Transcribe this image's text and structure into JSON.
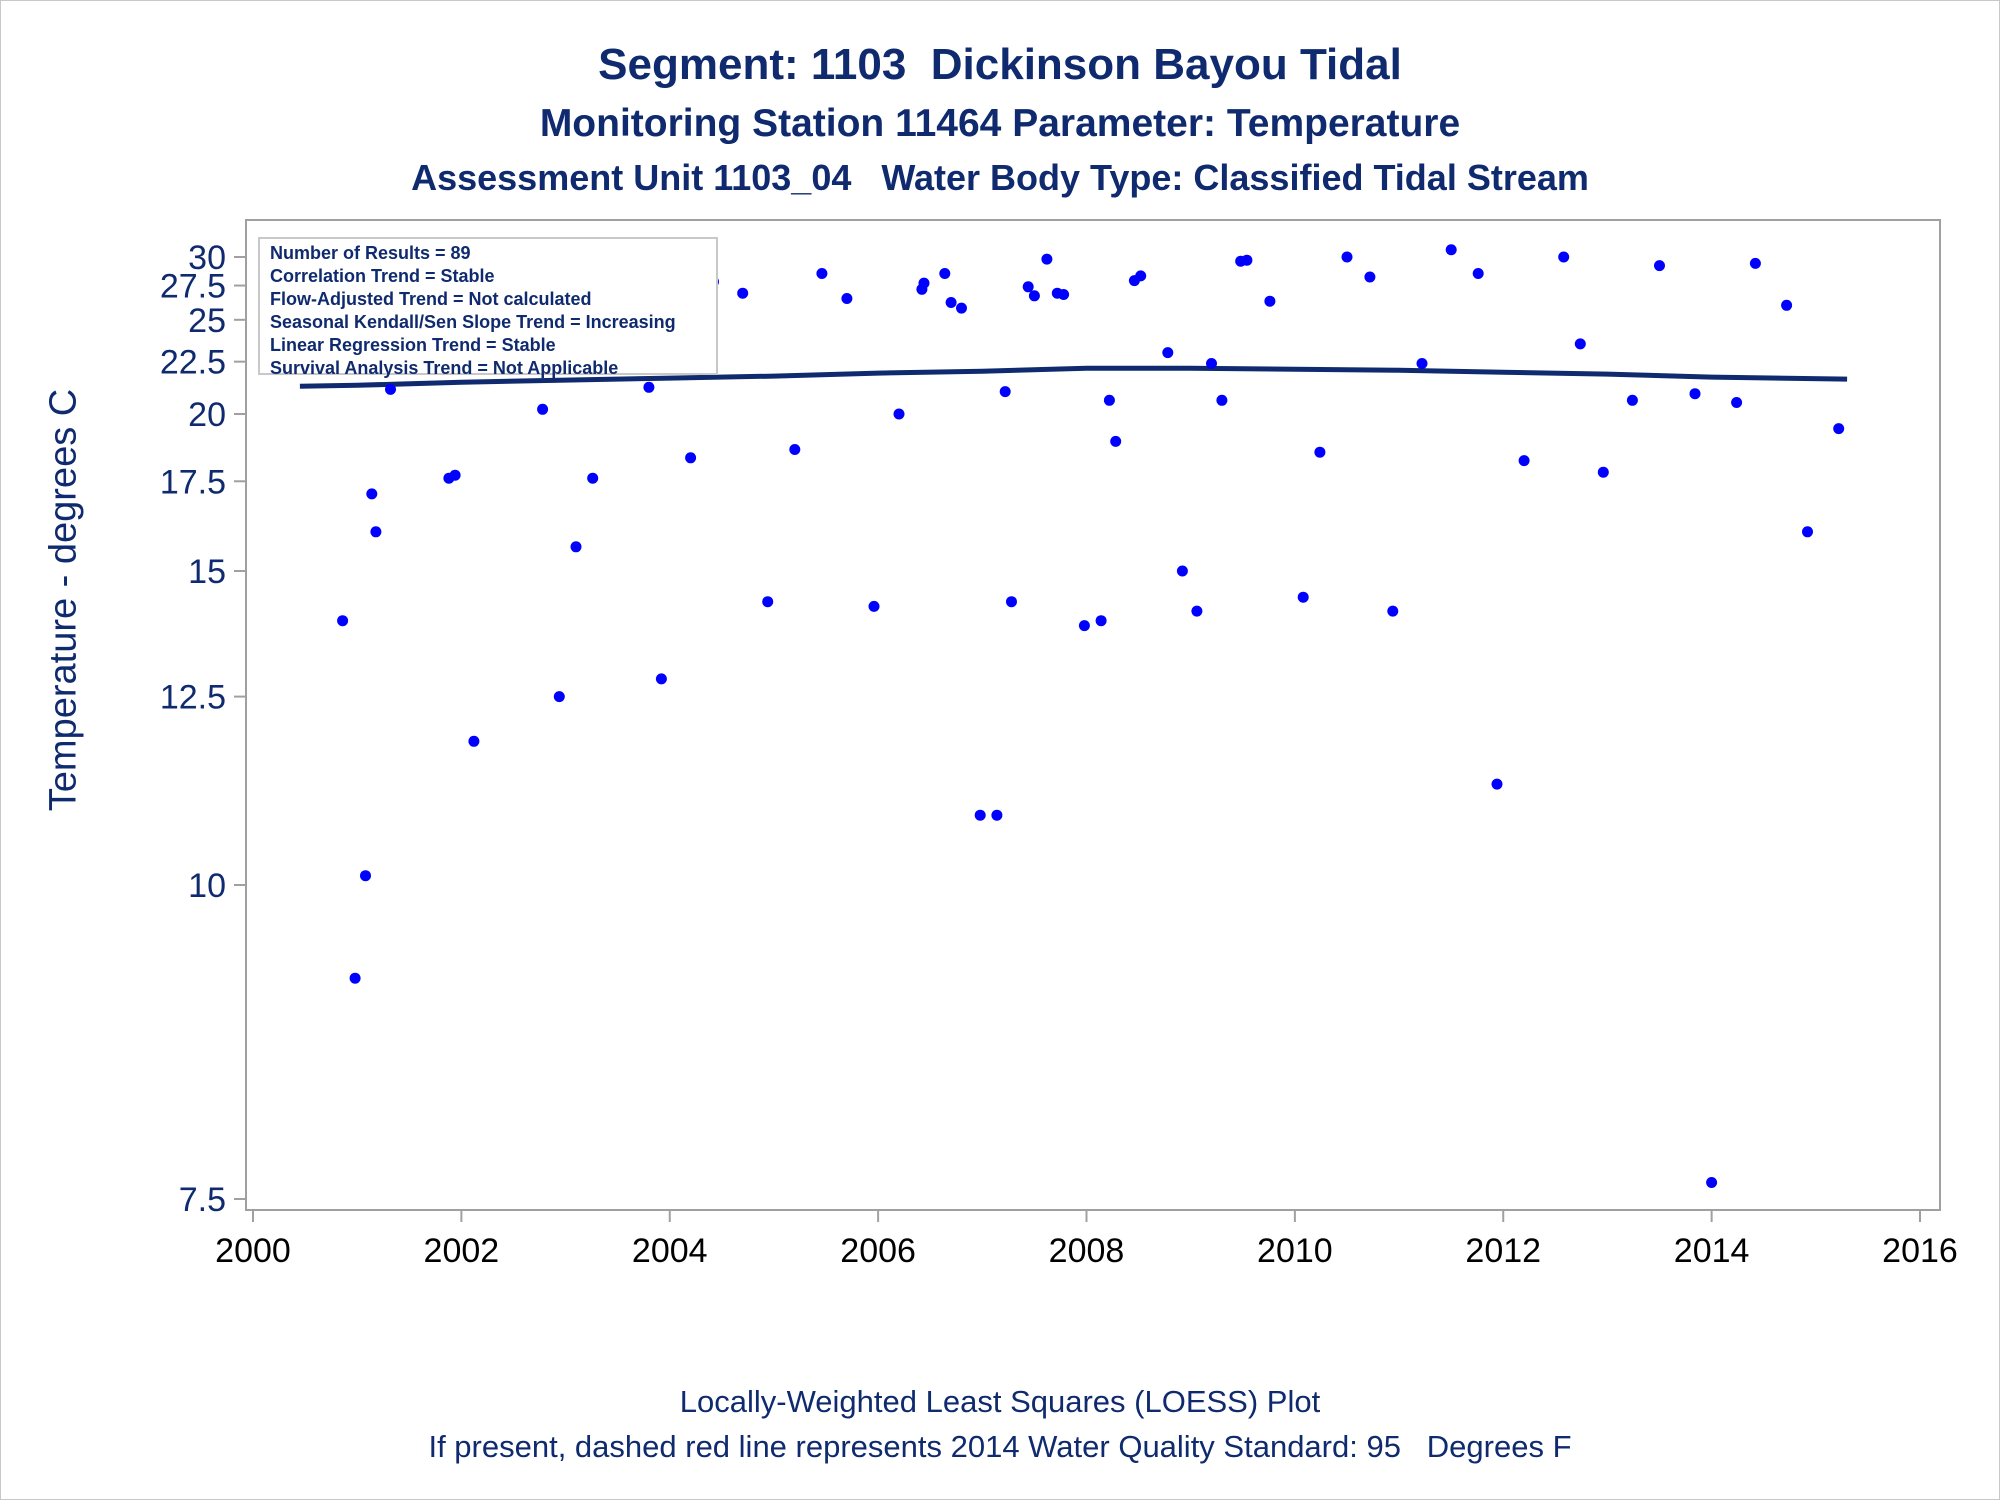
{
  "titles": {
    "line1": "Segment: 1103  Dickinson Bayou Tidal",
    "line2": "Monitoring Station 11464 Parameter: Temperature",
    "line3": "Assessment Unit 1103_04   Water Body Type: Classified Tidal Stream"
  },
  "stats_box": [
    "Number of Results = 89",
    "Correlation Trend = Stable",
    "Flow-Adjusted Trend = Not calculated",
    "Seasonal Kendall/Sen Slope Trend = Increasing",
    "Linear Regression Trend = Stable",
    "Survival Analysis Trend = Not Applicable"
  ],
  "footer": {
    "line1": "Locally-Weighted Least Squares (LOESS) Plot",
    "line2": "If present, dashed red line represents 2014 Water Quality Standard: 95   Degrees F"
  },
  "colors": {
    "text": "#0f2a6e",
    "points": "#0000ff",
    "loess": "#0f2a6e",
    "axis": "#a0a0a0"
  },
  "chart_data": {
    "type": "scatter",
    "ylabel": "Temperature - degrees C",
    "xlabel": "",
    "xlim": [
      2000,
      2016
    ],
    "ylim": [
      7.35,
      31.2
    ],
    "y_scale": "reciprocal",
    "x_ticks": [
      2000,
      2002,
      2004,
      2006,
      2008,
      2010,
      2012,
      2014,
      2016
    ],
    "y_ticks": [
      7.5,
      10,
      12.5,
      15,
      17.5,
      20,
      22.5,
      25,
      27.5,
      30
    ],
    "y_tick_labels": [
      "7.5",
      "10",
      "12.5",
      "15",
      "17.5",
      "20",
      "22.5",
      "25",
      "27.5",
      "30"
    ],
    "grid": false,
    "series": [
      {
        "kind": "points",
        "points": [
          [
            2000.42,
            27.7
          ],
          [
            2000.52,
            28.1
          ],
          [
            2000.64,
            28.1
          ],
          [
            2000.68,
            28.8
          ],
          [
            2000.82,
            23.0
          ],
          [
            2000.86,
            13.9
          ],
          [
            2000.98,
            9.1
          ],
          [
            2001.08,
            10.1
          ],
          [
            2001.14,
            17.1
          ],
          [
            2001.18,
            16.0
          ],
          [
            2001.32,
            21.1
          ],
          [
            2001.36,
            24.2
          ],
          [
            2001.46,
            29.5
          ],
          [
            2001.52,
            27.9
          ],
          [
            2001.66,
            23.9
          ],
          [
            2001.72,
            27.8
          ],
          [
            2001.82,
            23.7
          ],
          [
            2001.88,
            17.6
          ],
          [
            2001.94,
            17.7
          ],
          [
            2002.12,
            11.8
          ],
          [
            2002.32,
            25.5
          ],
          [
            2002.72,
            25.8
          ],
          [
            2002.78,
            20.2
          ],
          [
            2002.94,
            12.5
          ],
          [
            2003.1,
            15.6
          ],
          [
            2003.26,
            17.6
          ],
          [
            2003.44,
            28.2
          ],
          [
            2003.62,
            28.0
          ],
          [
            2003.8,
            21.2
          ],
          [
            2003.92,
            12.8
          ],
          [
            2004.2,
            18.3
          ],
          [
            2004.42,
            27.8
          ],
          [
            2004.7,
            26.9
          ],
          [
            2004.94,
            14.3
          ],
          [
            2005.2,
            18.6
          ],
          [
            2005.46,
            28.5
          ],
          [
            2005.7,
            26.5
          ],
          [
            2005.96,
            14.2
          ],
          [
            2006.2,
            20.0
          ],
          [
            2006.42,
            27.2
          ],
          [
            2006.44,
            27.7
          ],
          [
            2006.64,
            28.5
          ],
          [
            2006.7,
            26.2
          ],
          [
            2006.8,
            25.8
          ],
          [
            2006.98,
            10.8
          ],
          [
            2007.14,
            10.8
          ],
          [
            2007.22,
            21.0
          ],
          [
            2007.28,
            14.3
          ],
          [
            2007.44,
            27.4
          ],
          [
            2007.5,
            26.7
          ],
          [
            2007.62,
            29.8
          ],
          [
            2007.72,
            26.9
          ],
          [
            2007.78,
            26.8
          ],
          [
            2007.98,
            13.8
          ],
          [
            2008.14,
            13.9
          ],
          [
            2008.22,
            20.6
          ],
          [
            2008.28,
            18.9
          ],
          [
            2008.46,
            27.9
          ],
          [
            2008.52,
            28.3
          ],
          [
            2008.78,
            23.0
          ],
          [
            2008.92,
            15.0
          ],
          [
            2009.06,
            14.1
          ],
          [
            2009.2,
            22.4
          ],
          [
            2009.3,
            20.6
          ],
          [
            2009.48,
            29.6
          ],
          [
            2009.54,
            29.7
          ],
          [
            2009.76,
            26.3
          ],
          [
            2010.08,
            14.4
          ],
          [
            2010.24,
            18.5
          ],
          [
            2010.5,
            30.0
          ],
          [
            2010.72,
            28.2
          ],
          [
            2010.94,
            14.1
          ],
          [
            2011.22,
            22.4
          ],
          [
            2011.5,
            30.7
          ],
          [
            2011.76,
            28.5
          ],
          [
            2011.94,
            11.2
          ],
          [
            2012.2,
            18.2
          ],
          [
            2012.58,
            30.0
          ],
          [
            2012.74,
            23.5
          ],
          [
            2012.96,
            17.8
          ],
          [
            2013.24,
            20.6
          ],
          [
            2013.5,
            29.2
          ],
          [
            2013.84,
            20.9
          ],
          [
            2014.0,
            7.6
          ],
          [
            2014.24,
            20.5
          ],
          [
            2014.42,
            29.4
          ],
          [
            2014.72,
            26.0
          ],
          [
            2014.92,
            16.0
          ],
          [
            2015.22,
            19.4
          ]
        ]
      },
      {
        "kind": "line",
        "points": [
          [
            2000.45,
            21.25
          ],
          [
            2001.0,
            21.3
          ],
          [
            2002.0,
            21.45
          ],
          [
            2003.0,
            21.55
          ],
          [
            2004.0,
            21.65
          ],
          [
            2005.0,
            21.75
          ],
          [
            2006.0,
            21.9
          ],
          [
            2007.0,
            22.0
          ],
          [
            2008.0,
            22.15
          ],
          [
            2008.5,
            22.15
          ],
          [
            2009.0,
            22.15
          ],
          [
            2010.0,
            22.1
          ],
          [
            2011.0,
            22.05
          ],
          [
            2012.0,
            21.95
          ],
          [
            2013.0,
            21.85
          ],
          [
            2014.0,
            21.7
          ],
          [
            2015.3,
            21.6
          ]
        ]
      }
    ]
  }
}
